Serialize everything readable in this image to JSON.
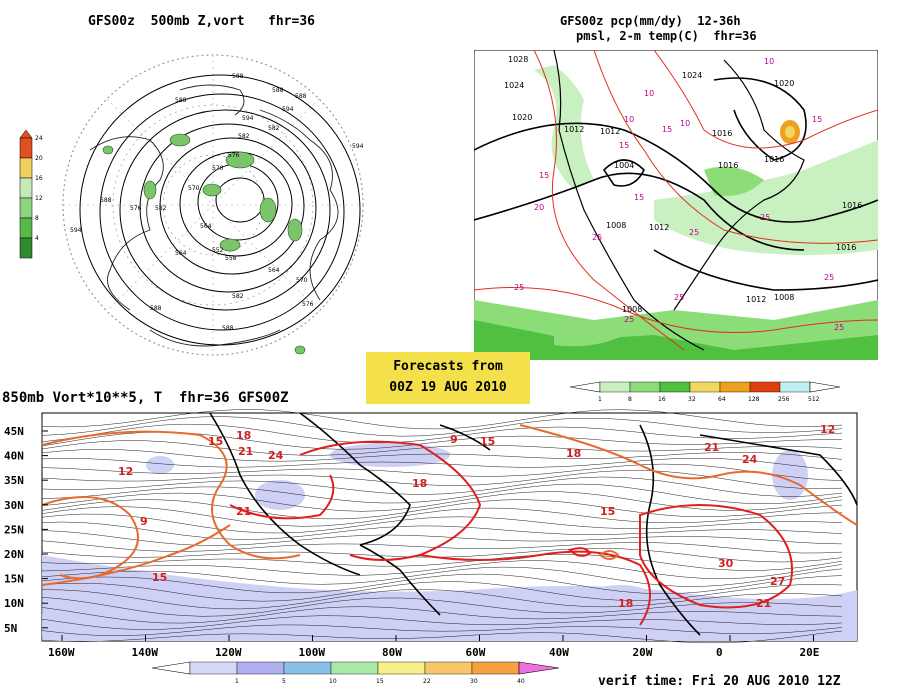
{
  "panel_500mb": {
    "title": "GFS00z  500mb Z,vort   fhr=36",
    "height_labels": [
      "588",
      "588",
      "588",
      "594",
      "594",
      "582",
      "582",
      "576",
      "570",
      "564",
      "552",
      "558",
      "564",
      "570",
      "576",
      "582",
      "588",
      "588",
      "594",
      "594",
      "588",
      "582",
      "576",
      "570",
      "564",
      "588"
    ],
    "colorbar": {
      "levels": [
        "24",
        "20",
        "16",
        "12",
        "8",
        "4"
      ],
      "colors": [
        "#2e8b2e",
        "#58b84a",
        "#8fd47e",
        "#c4ebb6",
        "#f0d060",
        "#e05020"
      ]
    }
  },
  "panel_pcp": {
    "title_line1": "GFS00z pcp(mm/dy)  12-36h",
    "title_line2": "pmsl, 2-m temp(C)  fhr=36",
    "isobar_labels": [
      "1028",
      "1024",
      "1020",
      "1012",
      "1012",
      "1004",
      "1008",
      "1016",
      "1016",
      "1016",
      "1012",
      "1008",
      "1008",
      "1024",
      "1020",
      "1016",
      "1016",
      "1012"
    ],
    "temp_labels": [
      "10",
      "10",
      "15",
      "10",
      "15",
      "15",
      "15",
      "20",
      "25",
      "25",
      "25",
      "25",
      "25",
      "25",
      "25",
      "25",
      "10",
      "15"
    ],
    "colorbar": {
      "levels": [
        "1",
        "8",
        "16",
        "32",
        "64",
        "128",
        "256",
        "512"
      ],
      "colors": [
        "#c8f0c0",
        "#8cdc78",
        "#50c040",
        "#f0d860",
        "#f0a020",
        "#e04010",
        "#c0f0f0"
      ]
    }
  },
  "forecast_box": {
    "line1": "Forecasts from",
    "line2": "00Z 19 AUG 2010"
  },
  "panel_850mb": {
    "title": "850mb Vort*10**5, T  fhr=36 GFS00Z",
    "lat_labels": [
      "45N",
      "40N",
      "35N",
      "30N",
      "25N",
      "20N",
      "15N",
      "10N",
      "5N"
    ],
    "lon_labels": [
      "160W",
      "140W",
      "120W",
      "100W",
      "80W",
      "60W",
      "40W",
      "20W",
      "0",
      "20E"
    ],
    "temp_labels": [
      "15",
      "18",
      "21",
      "24",
      "12",
      "9",
      "15",
      "18",
      "21",
      "15",
      "18",
      "21",
      "24",
      "27",
      "30",
      "15",
      "12",
      "9",
      "18",
      "21"
    ],
    "colorbar": {
      "levels": [
        "1",
        "5",
        "10",
        "15",
        "22",
        "30",
        "40"
      ],
      "colors": [
        "#d8d8f8",
        "#b0b0f0",
        "#88c0e8",
        "#a8e8a8",
        "#f8f088",
        "#f8c868",
        "#f8a040",
        "#f070e0"
      ]
    }
  },
  "verif_time": "verif time: Fri 20 AUG 2010 12Z"
}
